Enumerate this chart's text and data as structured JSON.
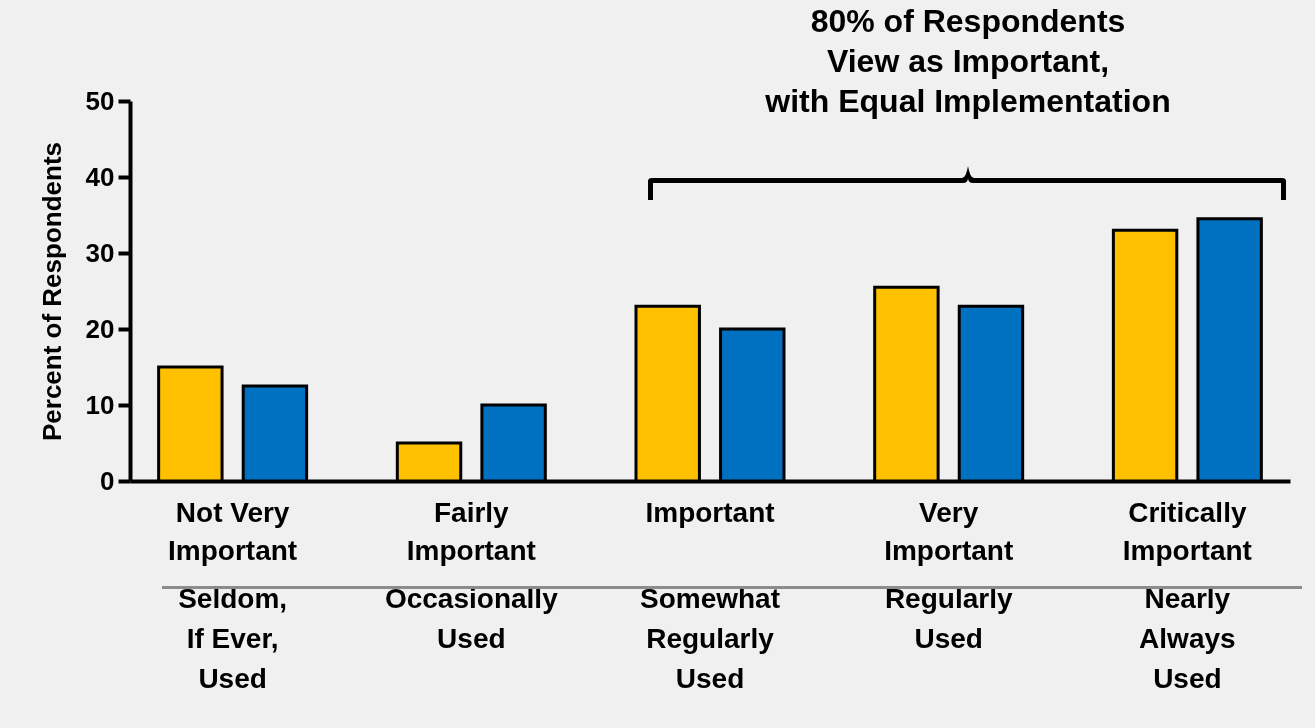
{
  "chart_data": {
    "type": "bar",
    "ylabel": "Percent of Respondents",
    "categories": [
      "Not Very\nImportant",
      "Fairly\nImportant",
      "Important",
      "Very\nImportant",
      "Critically\nImportant"
    ],
    "series": [
      {
        "color": "#ffc000",
        "values": [
          15,
          5,
          23,
          25.5,
          33
        ]
      },
      {
        "color": "#0070c0",
        "values": [
          12.5,
          10,
          20,
          23,
          34.5
        ]
      }
    ],
    "ylim": [
      0,
      50
    ],
    "yticks": [
      0,
      10,
      20,
      30,
      40,
      50
    ],
    "grid": false,
    "legend": false,
    "annotations": [
      "80% of Respondents\nView as Important,\nwith Equal Implementation",
      "Seldom,\nIf Ever,\nUsed",
      "Occasionally\nUsed",
      "Somewhat\nRegularly\nUsed",
      "Regularly\nUsed",
      "Nearly\nAlways\nUsed"
    ]
  }
}
